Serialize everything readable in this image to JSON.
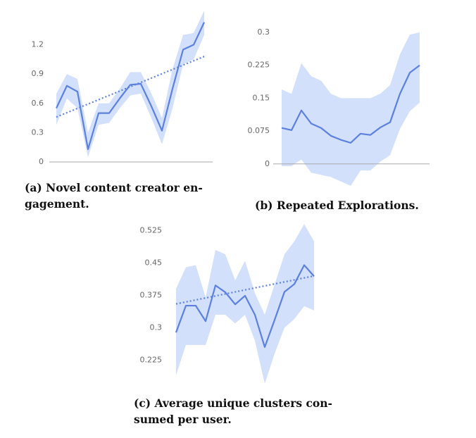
{
  "chart_data": [
    {
      "type": "line",
      "caption_lines": [
        "(a) Novel content creator en-",
        "gagement."
      ],
      "ylim": [
        0,
        1.55
      ],
      "yticks": [
        0,
        0.3,
        0.6,
        0.9,
        1.2
      ],
      "axis_line": 0,
      "color": "#5b80e0",
      "band_color": "#d3e0fb",
      "series": [
        {
          "values": [
            0.55,
            0.78,
            0.72,
            0.13,
            0.5,
            0.5,
            0.65,
            0.79,
            0.8,
            0.57,
            0.32,
            0.75,
            1.15,
            1.2,
            1.43
          ],
          "upper": [
            0.7,
            0.9,
            0.85,
            0.3,
            0.6,
            0.6,
            0.75,
            0.92,
            0.92,
            0.7,
            0.45,
            0.95,
            1.3,
            1.32,
            1.55
          ],
          "lower": [
            0.38,
            0.65,
            0.55,
            0.05,
            0.38,
            0.4,
            0.55,
            0.68,
            0.7,
            0.45,
            0.18,
            0.55,
            1.0,
            1.05,
            1.3
          ]
        }
      ],
      "trend": [
        0.46,
        1.08
      ]
    },
    {
      "type": "line",
      "caption_lines": [
        "(b) Repeated Explorations."
      ],
      "ylim": [
        -0.055,
        0.3
      ],
      "yticks": [
        0,
        0.075,
        0.15,
        0.225,
        0.3
      ],
      "axis_line": 0,
      "color": "#5b80e0",
      "band_color": "#d3e0fb",
      "series": [
        {
          "values": [
            0.082,
            0.077,
            0.122,
            0.092,
            0.082,
            0.064,
            0.055,
            0.048,
            0.069,
            0.066,
            0.083,
            0.095,
            0.16,
            0.208,
            0.225
          ],
          "upper": [
            0.17,
            0.16,
            0.23,
            0.2,
            0.19,
            0.16,
            0.15,
            0.15,
            0.15,
            0.15,
            0.16,
            0.18,
            0.25,
            0.295,
            0.3
          ],
          "lower": [
            -0.005,
            -0.005,
            0.01,
            -0.02,
            -0.025,
            -0.03,
            -0.04,
            -0.05,
            -0.015,
            -0.015,
            0.005,
            0.02,
            0.08,
            0.12,
            0.14
          ]
        }
      ]
    },
    {
      "type": "line",
      "caption_lines": [
        "(c) Average unique clusters con-",
        "sumed per user."
      ],
      "ylim": [
        0.17,
        0.56
      ],
      "yticks": [
        0.225,
        0.3,
        0.375,
        0.45,
        0.525
      ],
      "color": "#5b80e0",
      "band_color": "#d3e0fb",
      "series": [
        {
          "values": [
            0.289,
            0.351,
            0.351,
            0.315,
            0.398,
            0.382,
            0.354,
            0.374,
            0.33,
            0.255,
            0.318,
            0.383,
            0.401,
            0.445,
            0.419
          ],
          "upper": [
            0.39,
            0.44,
            0.445,
            0.37,
            0.48,
            0.47,
            0.41,
            0.455,
            0.38,
            0.33,
            0.4,
            0.47,
            0.5,
            0.54,
            0.5
          ],
          "lower": [
            0.19,
            0.26,
            0.26,
            0.26,
            0.33,
            0.33,
            0.31,
            0.33,
            0.27,
            0.17,
            0.24,
            0.3,
            0.32,
            0.35,
            0.34
          ]
        }
      ],
      "trend": [
        0.355,
        0.42
      ]
    }
  ]
}
